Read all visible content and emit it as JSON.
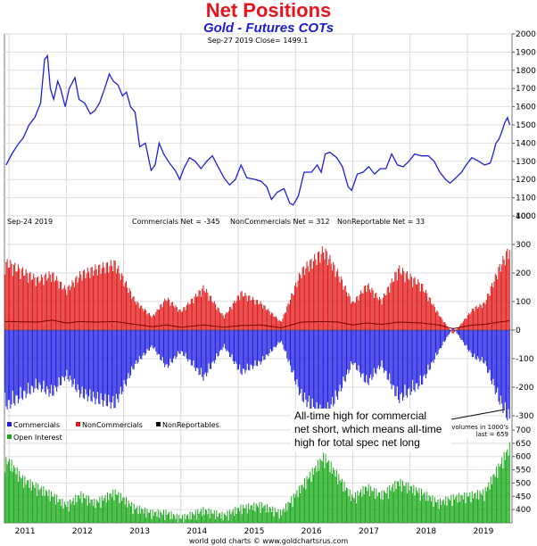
{
  "title": "Net Positions",
  "subtitle": "Gold - Futures COTs",
  "footer": "world gold charts © www.goldchartsrus.com",
  "chart_data": [
    {
      "type": "line",
      "panel": "price",
      "header": "Sep-27  2019   Close= 1499.1",
      "ylim": [
        1000,
        2000
      ],
      "y_ticks": [
        1000,
        1100,
        1200,
        1300,
        1400,
        1500,
        1600,
        1700,
        1800,
        1900,
        2000
      ],
      "grid": true,
      "series": [
        {
          "color": "#1f1fd6",
          "points": [
            [
              2010.95,
              1280
            ],
            [
              2011.05,
              1340
            ],
            [
              2011.15,
              1390
            ],
            [
              2011.25,
              1430
            ],
            [
              2011.35,
              1500
            ],
            [
              2011.45,
              1540
            ],
            [
              2011.55,
              1620
            ],
            [
              2011.62,
              1860
            ],
            [
              2011.67,
              1880
            ],
            [
              2011.72,
              1700
            ],
            [
              2011.78,
              1640
            ],
            [
              2011.85,
              1740
            ],
            [
              2011.9,
              1700
            ],
            [
              2011.98,
              1600
            ],
            [
              2012.05,
              1700
            ],
            [
              2012.15,
              1760
            ],
            [
              2012.22,
              1640
            ],
            [
              2012.32,
              1620
            ],
            [
              2012.42,
              1560
            ],
            [
              2012.5,
              1580
            ],
            [
              2012.58,
              1620
            ],
            [
              2012.67,
              1700
            ],
            [
              2012.75,
              1780
            ],
            [
              2012.82,
              1740
            ],
            [
              2012.9,
              1720
            ],
            [
              2012.98,
              1660
            ],
            [
              2013.05,
              1680
            ],
            [
              2013.12,
              1600
            ],
            [
              2013.2,
              1570
            ],
            [
              2013.28,
              1380
            ],
            [
              2013.38,
              1400
            ],
            [
              2013.48,
              1250
            ],
            [
              2013.55,
              1280
            ],
            [
              2013.62,
              1400
            ],
            [
              2013.7,
              1340
            ],
            [
              2013.8,
              1290
            ],
            [
              2013.9,
              1250
            ],
            [
              2013.98,
              1200
            ],
            [
              2014.05,
              1260
            ],
            [
              2014.15,
              1320
            ],
            [
              2014.25,
              1300
            ],
            [
              2014.35,
              1260
            ],
            [
              2014.45,
              1300
            ],
            [
              2014.55,
              1330
            ],
            [
              2014.65,
              1270
            ],
            [
              2014.75,
              1210
            ],
            [
              2014.85,
              1170
            ],
            [
              2014.95,
              1200
            ],
            [
              2015.05,
              1280
            ],
            [
              2015.15,
              1210
            ],
            [
              2015.3,
              1200
            ],
            [
              2015.4,
              1190
            ],
            [
              2015.5,
              1160
            ],
            [
              2015.58,
              1090
            ],
            [
              2015.68,
              1130
            ],
            [
              2015.8,
              1150
            ],
            [
              2015.9,
              1070
            ],
            [
              2015.96,
              1060
            ],
            [
              2016.05,
              1110
            ],
            [
              2016.15,
              1240
            ],
            [
              2016.28,
              1240
            ],
            [
              2016.38,
              1280
            ],
            [
              2016.45,
              1240
            ],
            [
              2016.52,
              1340
            ],
            [
              2016.6,
              1350
            ],
            [
              2016.72,
              1320
            ],
            [
              2016.82,
              1270
            ],
            [
              2016.92,
              1160
            ],
            [
              2016.98,
              1140
            ],
            [
              2017.08,
              1230
            ],
            [
              2017.18,
              1240
            ],
            [
              2017.28,
              1270
            ],
            [
              2017.38,
              1230
            ],
            [
              2017.48,
              1260
            ],
            [
              2017.58,
              1260
            ],
            [
              2017.68,
              1340
            ],
            [
              2017.78,
              1280
            ],
            [
              2017.88,
              1270
            ],
            [
              2017.98,
              1300
            ],
            [
              2018.08,
              1340
            ],
            [
              2018.2,
              1330
            ],
            [
              2018.32,
              1330
            ],
            [
              2018.42,
              1300
            ],
            [
              2018.52,
              1240
            ],
            [
              2018.62,
              1200
            ],
            [
              2018.7,
              1180
            ],
            [
              2018.8,
              1210
            ],
            [
              2018.9,
              1240
            ],
            [
              2018.98,
              1280
            ],
            [
              2019.08,
              1320
            ],
            [
              2019.2,
              1300
            ],
            [
              2019.3,
              1280
            ],
            [
              2019.4,
              1290
            ],
            [
              2019.45,
              1340
            ],
            [
              2019.5,
              1400
            ],
            [
              2019.55,
              1420
            ],
            [
              2019.6,
              1460
            ],
            [
              2019.65,
              1510
            ],
            [
              2019.7,
              1540
            ],
            [
              2019.74,
              1500
            ]
          ]
        }
      ]
    },
    {
      "type": "bar",
      "panel": "net_positions",
      "header_date": "Sep-24  2019",
      "header_values": [
        "Commercials Net = -345",
        "NonCommercials Net = 312",
        "NonReportable Net = 33"
      ],
      "ylim": [
        -350,
        400
      ],
      "y_ticks": [
        -300,
        -200,
        -100,
        0,
        100,
        200,
        300,
        400
      ],
      "legend_position": "bottom-left",
      "series": [
        {
          "name": "Commercials",
          "color": "#1e1ee0",
          "points": [
            [
              2011.0,
              -280
            ],
            [
              2011.5,
              -210
            ],
            [
              2011.75,
              -240
            ],
            [
              2012.0,
              -170
            ],
            [
              2012.25,
              -240
            ],
            [
              2012.5,
              -260
            ],
            [
              2012.85,
              -280
            ],
            [
              2013.2,
              -130
            ],
            [
              2013.5,
              -60
            ],
            [
              2013.75,
              -140
            ],
            [
              2014.0,
              -80
            ],
            [
              2014.4,
              -180
            ],
            [
              2014.75,
              -60
            ],
            [
              2015.05,
              -160
            ],
            [
              2015.4,
              -120
            ],
            [
              2015.75,
              -40
            ],
            [
              2016.1,
              -250
            ],
            [
              2016.5,
              -330
            ],
            [
              2016.75,
              -240
            ],
            [
              2017.0,
              -120
            ],
            [
              2017.25,
              -200
            ],
            [
              2017.5,
              -130
            ],
            [
              2017.8,
              -260
            ],
            [
              2018.2,
              -200
            ],
            [
              2018.5,
              -80
            ],
            [
              2018.75,
              10
            ],
            [
              2019.1,
              -100
            ],
            [
              2019.3,
              -120
            ],
            [
              2019.55,
              -260
            ],
            [
              2019.75,
              -345
            ]
          ]
        },
        {
          "name": "NonCommercials",
          "color": "#e01818",
          "points": [
            [
              2011.0,
              250
            ],
            [
              2011.5,
              190
            ],
            [
              2011.75,
              210
            ],
            [
              2012.0,
              150
            ],
            [
              2012.25,
              210
            ],
            [
              2012.5,
              230
            ],
            [
              2012.85,
              250
            ],
            [
              2013.2,
              110
            ],
            [
              2013.5,
              50
            ],
            [
              2013.75,
              120
            ],
            [
              2014.0,
              70
            ],
            [
              2014.4,
              160
            ],
            [
              2014.75,
              50
            ],
            [
              2015.05,
              140
            ],
            [
              2015.4,
              100
            ],
            [
              2015.75,
              30
            ],
            [
              2016.1,
              220
            ],
            [
              2016.5,
              300
            ],
            [
              2016.75,
              210
            ],
            [
              2017.0,
              100
            ],
            [
              2017.25,
              170
            ],
            [
              2017.5,
              110
            ],
            [
              2017.8,
              230
            ],
            [
              2018.2,
              170
            ],
            [
              2018.5,
              60
            ],
            [
              2018.75,
              -15
            ],
            [
              2019.1,
              80
            ],
            [
              2019.3,
              100
            ],
            [
              2019.55,
              230
            ],
            [
              2019.75,
              312
            ]
          ]
        },
        {
          "name": "NonReportables",
          "color": "#000000",
          "points": [
            [
              2011.0,
              30
            ],
            [
              2011.5,
              28
            ],
            [
              2011.75,
              35
            ],
            [
              2012.0,
              25
            ],
            [
              2012.25,
              30
            ],
            [
              2012.5,
              28
            ],
            [
              2012.85,
              30
            ],
            [
              2013.2,
              20
            ],
            [
              2013.5,
              12
            ],
            [
              2013.75,
              18
            ],
            [
              2014.0,
              10
            ],
            [
              2014.4,
              18
            ],
            [
              2014.75,
              10
            ],
            [
              2015.05,
              16
            ],
            [
              2015.4,
              18
            ],
            [
              2015.75,
              8
            ],
            [
              2016.1,
              28
            ],
            [
              2016.5,
              30
            ],
            [
              2016.75,
              28
            ],
            [
              2017.0,
              18
            ],
            [
              2017.25,
              25
            ],
            [
              2017.5,
              20
            ],
            [
              2017.8,
              28
            ],
            [
              2018.2,
              25
            ],
            [
              2018.5,
              18
            ],
            [
              2018.75,
              5
            ],
            [
              2019.1,
              18
            ],
            [
              2019.3,
              20
            ],
            [
              2019.55,
              28
            ],
            [
              2019.75,
              33
            ]
          ]
        }
      ],
      "annotation": [
        "All-time high for commercial",
        "net short, which means all-time",
        "high for total spec net long"
      ],
      "note": [
        "volumes in 1000's",
        "last = 659"
      ]
    },
    {
      "type": "bar",
      "panel": "open_interest",
      "ylim": [
        350,
        700
      ],
      "y_ticks": [
        400,
        450,
        500,
        550,
        600,
        650,
        700
      ],
      "legend_position": "top-left",
      "series": [
        {
          "name": "Open Interest",
          "color": "#18a818",
          "points": [
            [
              2011.0,
              600
            ],
            [
              2011.25,
              530
            ],
            [
              2011.5,
              500
            ],
            [
              2011.75,
              470
            ],
            [
              2012.0,
              430
            ],
            [
              2012.25,
              470
            ],
            [
              2012.5,
              440
            ],
            [
              2012.85,
              480
            ],
            [
              2013.2,
              420
            ],
            [
              2013.5,
              400
            ],
            [
              2013.75,
              400
            ],
            [
              2014.0,
              380
            ],
            [
              2014.4,
              410
            ],
            [
              2014.75,
              390
            ],
            [
              2015.05,
              420
            ],
            [
              2015.4,
              430
            ],
            [
              2015.75,
              400
            ],
            [
              2016.1,
              500
            ],
            [
              2016.5,
              620
            ],
            [
              2016.75,
              540
            ],
            [
              2017.0,
              460
            ],
            [
              2017.25,
              500
            ],
            [
              2017.5,
              470
            ],
            [
              2017.8,
              520
            ],
            [
              2018.2,
              480
            ],
            [
              2018.5,
              440
            ],
            [
              2018.75,
              460
            ],
            [
              2019.1,
              470
            ],
            [
              2019.3,
              480
            ],
            [
              2019.55,
              580
            ],
            [
              2019.75,
              659
            ]
          ]
        }
      ]
    }
  ],
  "x_axis": {
    "ticks": [
      "2011",
      "2012",
      "2013",
      "2014",
      "2015",
      "2016",
      "2017",
      "2018",
      "2019"
    ],
    "tick_values": [
      2011,
      2012,
      2013,
      2014,
      2015,
      2016,
      2017,
      2018,
      2019
    ],
    "xlim": [
      2010.92,
      2019.78
    ]
  }
}
